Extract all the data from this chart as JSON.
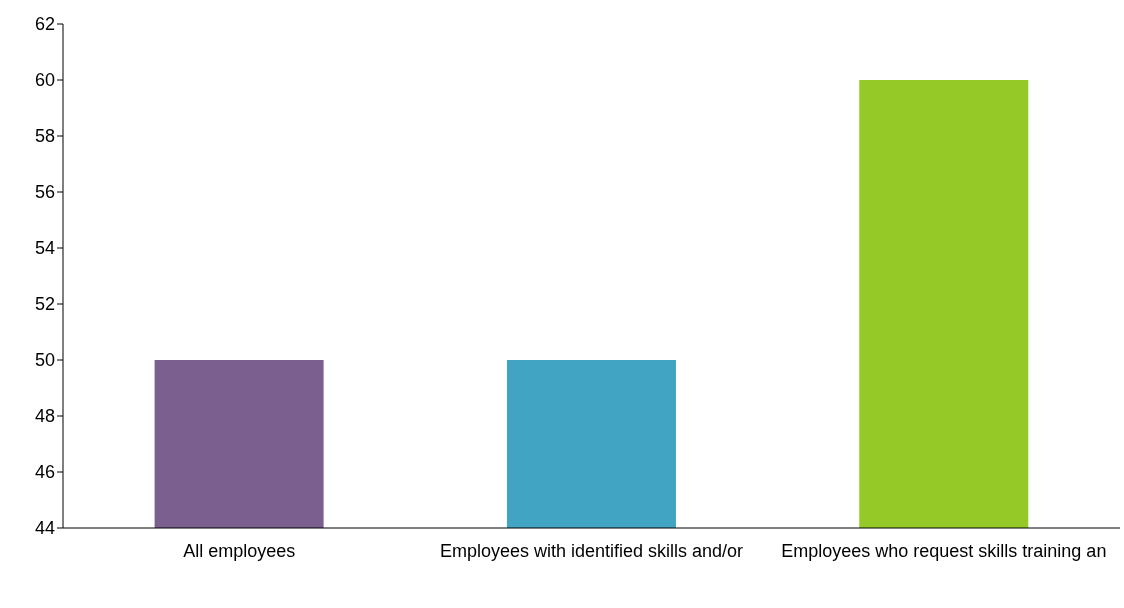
{
  "chart_data": {
    "type": "bar",
    "categories": [
      "All employees",
      "Employees with identified skills and/or",
      "Employees who request skills training an"
    ],
    "values": [
      50,
      50,
      60
    ],
    "colors": [
      "#7b5f8e",
      "#41a4c2",
      "#95c928"
    ],
    "ylim": [
      44,
      62
    ],
    "yticks": [
      44,
      46,
      48,
      50,
      52,
      54,
      56,
      58,
      60,
      62
    ],
    "grid": false,
    "legend": false
  }
}
